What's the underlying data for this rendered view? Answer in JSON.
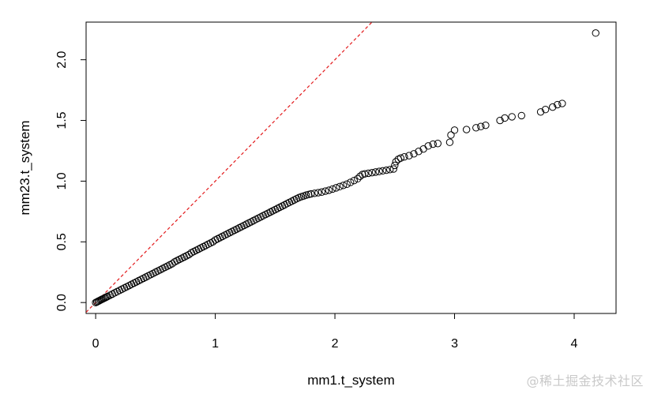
{
  "watermark": "@稀土掘金技术社区",
  "chart_data": {
    "type": "scatter",
    "xlabel": "mm1.t_system",
    "ylabel": "mm23.t_system",
    "xlim": [
      -0.08,
      4.35
    ],
    "ylim": [
      -0.09,
      2.31
    ],
    "x_ticks": [
      "0",
      "1",
      "2",
      "3",
      "4"
    ],
    "y_ticks": [
      "0.0",
      "0.5",
      "1.0",
      "1.5",
      "2.0"
    ],
    "grid": false,
    "reference_line": {
      "slope": 1,
      "intercept": 0,
      "color": "#e31a1c",
      "style": "dashed"
    },
    "marker_color": "#000000",
    "series": [
      {
        "points": [
          [
            0.0,
            0.0
          ],
          [
            0.01,
            0.005
          ],
          [
            0.02,
            0.01
          ],
          [
            0.03,
            0.015
          ],
          [
            0.04,
            0.02
          ],
          [
            0.05,
            0.025
          ],
          [
            0.06,
            0.03
          ],
          [
            0.07,
            0.035
          ],
          [
            0.08,
            0.04
          ],
          [
            0.09,
            0.045
          ],
          [
            0.1,
            0.05
          ],
          [
            0.12,
            0.06
          ],
          [
            0.14,
            0.07
          ],
          [
            0.16,
            0.08
          ],
          [
            0.18,
            0.09
          ],
          [
            0.2,
            0.1
          ],
          [
            0.22,
            0.11
          ],
          [
            0.24,
            0.12
          ],
          [
            0.26,
            0.13
          ],
          [
            0.28,
            0.14
          ],
          [
            0.3,
            0.15
          ],
          [
            0.32,
            0.16
          ],
          [
            0.34,
            0.17
          ],
          [
            0.36,
            0.18
          ],
          [
            0.38,
            0.19
          ],
          [
            0.4,
            0.2
          ],
          [
            0.42,
            0.21
          ],
          [
            0.44,
            0.22
          ],
          [
            0.46,
            0.23
          ],
          [
            0.48,
            0.24
          ],
          [
            0.5,
            0.25
          ],
          [
            0.52,
            0.26
          ],
          [
            0.54,
            0.27
          ],
          [
            0.56,
            0.28
          ],
          [
            0.58,
            0.29
          ],
          [
            0.6,
            0.3
          ],
          [
            0.62,
            0.31
          ],
          [
            0.64,
            0.32
          ],
          [
            0.66,
            0.335
          ],
          [
            0.68,
            0.345
          ],
          [
            0.7,
            0.355
          ],
          [
            0.72,
            0.365
          ],
          [
            0.74,
            0.375
          ],
          [
            0.76,
            0.385
          ],
          [
            0.78,
            0.395
          ],
          [
            0.8,
            0.41
          ],
          [
            0.82,
            0.42
          ],
          [
            0.84,
            0.43
          ],
          [
            0.86,
            0.44
          ],
          [
            0.88,
            0.45
          ],
          [
            0.9,
            0.46
          ],
          [
            0.92,
            0.47
          ],
          [
            0.94,
            0.48
          ],
          [
            0.96,
            0.49
          ],
          [
            0.98,
            0.5
          ],
          [
            1.0,
            0.515
          ],
          [
            1.02,
            0.525
          ],
          [
            1.04,
            0.535
          ],
          [
            1.06,
            0.545
          ],
          [
            1.08,
            0.555
          ],
          [
            1.1,
            0.565
          ],
          [
            1.12,
            0.575
          ],
          [
            1.14,
            0.585
          ],
          [
            1.16,
            0.595
          ],
          [
            1.18,
            0.605
          ],
          [
            1.2,
            0.615
          ],
          [
            1.22,
            0.625
          ],
          [
            1.24,
            0.635
          ],
          [
            1.26,
            0.645
          ],
          [
            1.28,
            0.655
          ],
          [
            1.3,
            0.665
          ],
          [
            1.32,
            0.675
          ],
          [
            1.34,
            0.685
          ],
          [
            1.36,
            0.695
          ],
          [
            1.38,
            0.705
          ],
          [
            1.4,
            0.715
          ],
          [
            1.42,
            0.725
          ],
          [
            1.44,
            0.735
          ],
          [
            1.46,
            0.745
          ],
          [
            1.48,
            0.755
          ],
          [
            1.5,
            0.765
          ],
          [
            1.52,
            0.775
          ],
          [
            1.54,
            0.785
          ],
          [
            1.56,
            0.795
          ],
          [
            1.58,
            0.805
          ],
          [
            1.6,
            0.815
          ],
          [
            1.62,
            0.825
          ],
          [
            1.64,
            0.835
          ],
          [
            1.66,
            0.845
          ],
          [
            1.68,
            0.855
          ],
          [
            1.7,
            0.865
          ],
          [
            1.72,
            0.872
          ],
          [
            1.74,
            0.878
          ],
          [
            1.76,
            0.885
          ],
          [
            1.78,
            0.89
          ],
          [
            1.8,
            0.895
          ],
          [
            1.83,
            0.9
          ],
          [
            1.86,
            0.905
          ],
          [
            1.89,
            0.91
          ],
          [
            1.92,
            0.918
          ],
          [
            1.95,
            0.925
          ],
          [
            1.98,
            0.935
          ],
          [
            2.01,
            0.945
          ],
          [
            2.04,
            0.955
          ],
          [
            2.07,
            0.965
          ],
          [
            2.1,
            0.975
          ],
          [
            2.13,
            0.99
          ],
          [
            2.16,
            1.005
          ],
          [
            2.19,
            1.02
          ],
          [
            2.21,
            1.04
          ],
          [
            2.23,
            1.055
          ],
          [
            2.25,
            1.06
          ],
          [
            2.28,
            1.065
          ],
          [
            2.31,
            1.07
          ],
          [
            2.34,
            1.075
          ],
          [
            2.37,
            1.08
          ],
          [
            2.4,
            1.085
          ],
          [
            2.43,
            1.09
          ],
          [
            2.46,
            1.095
          ],
          [
            2.49,
            1.1
          ],
          [
            2.5,
            1.13
          ],
          [
            2.51,
            1.16
          ],
          [
            2.53,
            1.18
          ],
          [
            2.55,
            1.19
          ],
          [
            2.58,
            1.2
          ],
          [
            2.62,
            1.21
          ],
          [
            2.66,
            1.225
          ],
          [
            2.7,
            1.245
          ],
          [
            2.74,
            1.265
          ],
          [
            2.78,
            1.29
          ],
          [
            2.82,
            1.305
          ],
          [
            2.86,
            1.31
          ],
          [
            2.96,
            1.32
          ],
          [
            2.97,
            1.38
          ],
          [
            3.0,
            1.42
          ],
          [
            3.1,
            1.425
          ],
          [
            3.18,
            1.44
          ],
          [
            3.22,
            1.45
          ],
          [
            3.26,
            1.46
          ],
          [
            3.38,
            1.5
          ],
          [
            3.42,
            1.52
          ],
          [
            3.48,
            1.53
          ],
          [
            3.56,
            1.54
          ],
          [
            3.72,
            1.57
          ],
          [
            3.76,
            1.59
          ],
          [
            3.82,
            1.61
          ],
          [
            3.86,
            1.63
          ],
          [
            3.9,
            1.64
          ],
          [
            4.18,
            2.22
          ]
        ]
      }
    ]
  }
}
